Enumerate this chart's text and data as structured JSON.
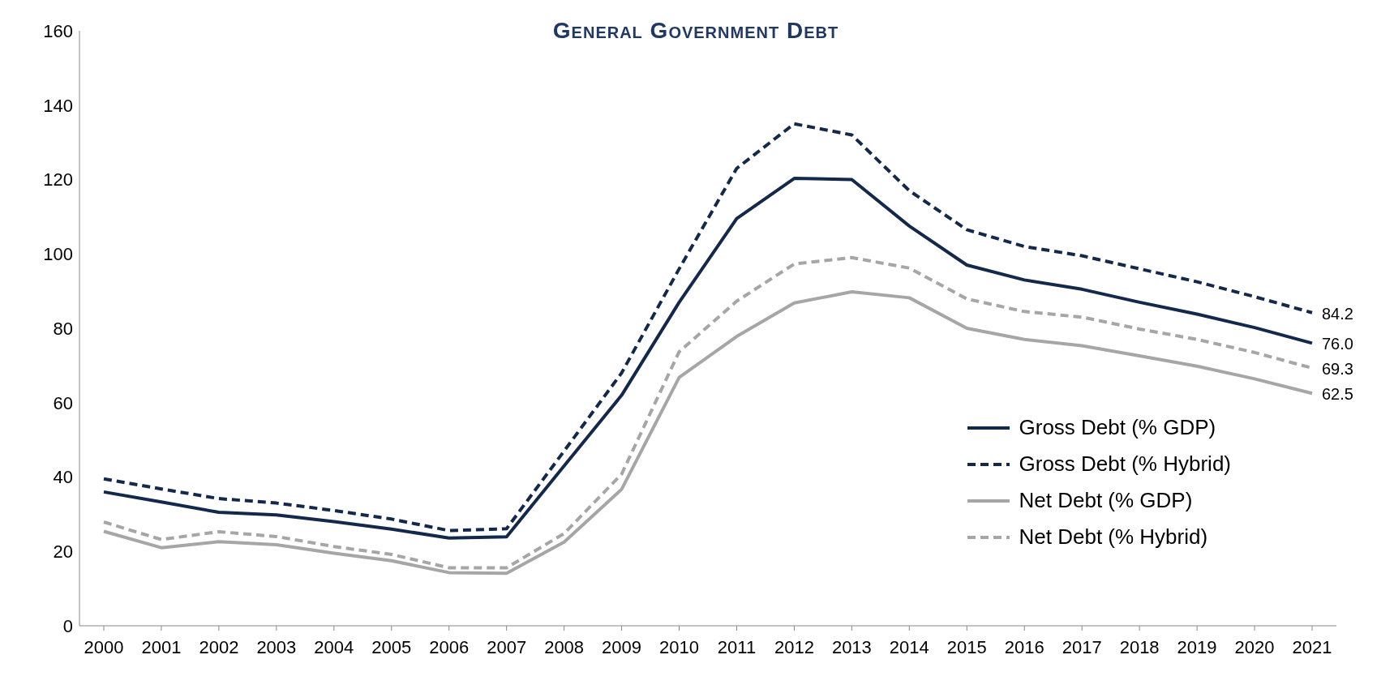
{
  "chart_data": {
    "type": "line",
    "title": "General Government Debt",
    "categories": [
      "2000",
      "2001",
      "2002",
      "2003",
      "2004",
      "2005",
      "2006",
      "2007",
      "2008",
      "2009",
      "2010",
      "2011",
      "2012",
      "2013",
      "2014",
      "2015",
      "2016",
      "2017",
      "2018",
      "2019",
      "2020",
      "2021"
    ],
    "series": [
      {
        "name": "Gross Debt (% GDP)",
        "color": "#13294b",
        "line_style": "solid",
        "values": [
          36,
          33.3,
          30.5,
          29.8,
          28,
          26,
          23.6,
          23.9,
          43,
          62,
          87,
          109.5,
          120.3,
          120,
          107.5,
          97,
          93,
          90.5,
          87,
          83.8,
          80.2,
          76.0
        ],
        "value_labels": [
          null,
          null,
          null,
          null,
          null,
          null,
          null,
          null,
          null,
          null,
          null,
          null,
          null,
          null,
          null,
          null,
          null,
          null,
          null,
          null,
          null,
          "76.0"
        ]
      },
      {
        "name": "Gross Debt (% Hybrid)",
        "color": "#13294b",
        "line_style": "dashed",
        "values": [
          39.5,
          36.8,
          34.2,
          33,
          31,
          28.7,
          25.6,
          26.1,
          47,
          68,
          96,
          123,
          135,
          132,
          117,
          106.5,
          102,
          99.5,
          96,
          92.5,
          88.5,
          84.2
        ],
        "value_labels": [
          null,
          null,
          null,
          null,
          null,
          null,
          null,
          null,
          null,
          null,
          null,
          null,
          null,
          null,
          null,
          null,
          null,
          null,
          null,
          null,
          null,
          "84.2"
        ]
      },
      {
        "name": "Net Debt (% GDP)",
        "color": "#a6a6a6",
        "line_style": "solid",
        "values": [
          25.4,
          21,
          22.6,
          21.8,
          19.5,
          17.5,
          14.3,
          14.1,
          22.5,
          36.7,
          66.8,
          77.8,
          86.8,
          89.8,
          88.2,
          80,
          77,
          75.3,
          72.6,
          69.8,
          66.4,
          62.5
        ],
        "value_labels": [
          null,
          null,
          null,
          null,
          null,
          null,
          null,
          null,
          null,
          null,
          null,
          null,
          null,
          null,
          null,
          null,
          null,
          null,
          null,
          null,
          null,
          "62.5"
        ]
      },
      {
        "name": "Net Debt (% Hybrid)",
        "color": "#a6a6a6",
        "line_style": "dashed",
        "values": [
          27.9,
          23.2,
          25.3,
          24,
          21.3,
          19.2,
          15.6,
          15.6,
          24.8,
          40.8,
          73.7,
          87.3,
          97.3,
          99,
          96.2,
          87.9,
          84.5,
          83,
          79.8,
          77,
          73.5,
          69.3
        ],
        "value_labels": [
          null,
          null,
          null,
          null,
          null,
          null,
          null,
          null,
          null,
          null,
          null,
          null,
          null,
          null,
          null,
          null,
          null,
          null,
          null,
          null,
          null,
          "69.3"
        ]
      }
    ],
    "ylim": [
      0,
      160
    ],
    "yticks": [
      0,
      20,
      40,
      60,
      80,
      100,
      120,
      140,
      160
    ],
    "grid": false,
    "legend": "lower right",
    "marker": "none"
  }
}
